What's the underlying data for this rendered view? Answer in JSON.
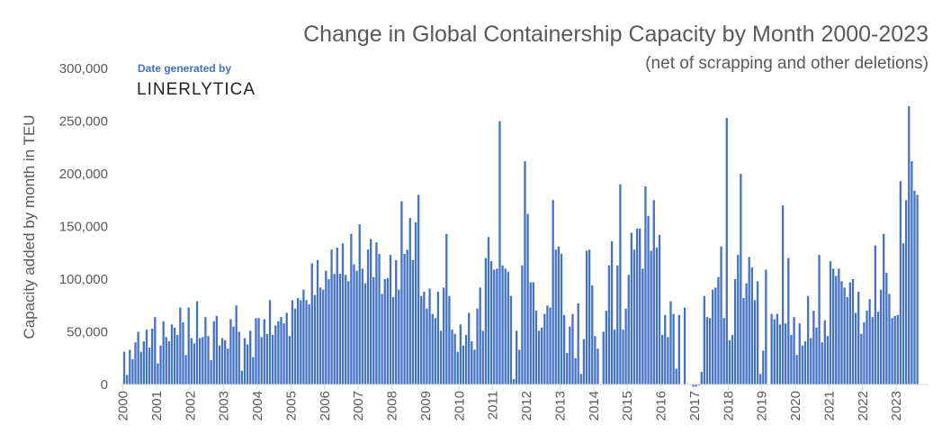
{
  "chart_data": {
    "type": "bar",
    "title": "Change in Global Containership Capacity by Month 2000-2023",
    "subtitle": "(net of scrapping and other deletions)",
    "ylabel": "Capacity added by month in TEU",
    "xlabel": "",
    "ylim": [
      0,
      300000
    ],
    "yticks": [
      "0",
      "50,000",
      "100,000",
      "150,000",
      "200,000",
      "250,000",
      "300,000"
    ],
    "grid": false,
    "color": "#4472C4",
    "years": [
      "2000",
      "2001",
      "2002",
      "2003",
      "2004",
      "2005",
      "2006",
      "2007",
      "2008",
      "2009",
      "2010",
      "2011",
      "2012",
      "2013",
      "2014",
      "2015",
      "2016",
      "2017",
      "2018",
      "2019",
      "2020",
      "2021",
      "2022",
      "2023"
    ],
    "values_thousand_teu": [
      31,
      9,
      33,
      24,
      40,
      50,
      31,
      41,
      52,
      35,
      53,
      64,
      20,
      37,
      60,
      45,
      41,
      57,
      54,
      47,
      73,
      59,
      28,
      73,
      44,
      39,
      79,
      44,
      45,
      64,
      46,
      23,
      60,
      65,
      37,
      44,
      42,
      34,
      62,
      55,
      75,
      50,
      13,
      44,
      38,
      51,
      26,
      63,
      63,
      45,
      62,
      48,
      80,
      47,
      56,
      60,
      64,
      58,
      68,
      46,
      80,
      72,
      82,
      80,
      90,
      80,
      76,
      115,
      85,
      118,
      92,
      90,
      108,
      100,
      128,
      105,
      130,
      105,
      134,
      104,
      98,
      143,
      114,
      108,
      152,
      110,
      96,
      128,
      138,
      102,
      135,
      124,
      86,
      100,
      101,
      123,
      83,
      118,
      90,
      174,
      124,
      128,
      158,
      118,
      154,
      180,
      84,
      88,
      72,
      91,
      67,
      63,
      88,
      51,
      92,
      143,
      84,
      52,
      48,
      31,
      57,
      37,
      47,
      68,
      41,
      33,
      72,
      92,
      51,
      120,
      140,
      117,
      109,
      110,
      250,
      113,
      110,
      107,
      84,
      5,
      51,
      33,
      113,
      212,
      162,
      97,
      97,
      70,
      51,
      54,
      67,
      75,
      73,
      175,
      128,
      131,
      124,
      66,
      30,
      55,
      67,
      25,
      77,
      10,
      43,
      127,
      128,
      94,
      46,
      34,
      0,
      50,
      70,
      113,
      136,
      52,
      113,
      190,
      52,
      72,
      104,
      144,
      128,
      148,
      148,
      110,
      188,
      160,
      127,
      175,
      130,
      142,
      47,
      66,
      45,
      79,
      67,
      15,
      66,
      0,
      73,
      0,
      0,
      -2,
      -2,
      -1,
      12,
      84,
      64,
      63,
      90,
      92,
      102,
      131,
      63,
      253,
      42,
      47,
      100,
      123,
      200,
      82,
      96,
      121,
      111,
      80,
      98,
      10,
      32,
      109,
      0,
      67,
      62,
      67,
      57,
      170,
      58,
      120,
      47,
      64,
      28,
      58,
      37,
      41,
      84,
      44,
      70,
      54,
      123,
      40,
      61,
      46,
      117,
      110,
      103,
      110,
      98,
      92,
      83,
      97,
      100,
      68,
      88,
      48,
      59,
      70,
      81,
      64,
      132,
      69,
      90,
      143,
      106,
      86,
      63,
      65,
      66,
      193,
      134,
      175,
      264,
      212,
      184,
      180
    ]
  },
  "credit": {
    "label": "Date generated by",
    "brand": "LINERLYTICA"
  }
}
